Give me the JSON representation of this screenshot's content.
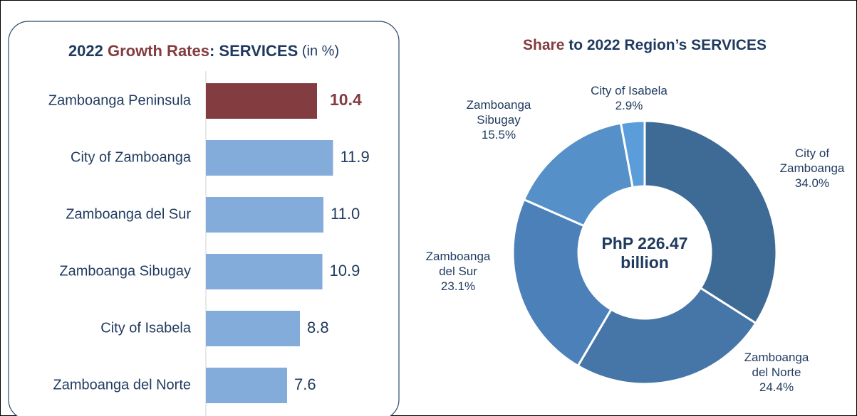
{
  "chart_data": [
    {
      "type": "hbar",
      "title": [
        "2022 ",
        "Growth Rates",
        ": SERVICES",
        " (in %)"
      ],
      "categories": [
        "Zamboanga Peninsula",
        "City of Zamboanga",
        "Zamboanga del Sur",
        "Zamboanga Sibugay",
        "City of Isabela",
        "Zamboanga del Norte"
      ],
      "values": [
        10.4,
        11.9,
        11.0,
        10.9,
        8.8,
        7.6
      ],
      "value_labels": [
        "10.4",
        "11.9",
        "11.0",
        "10.9",
        "8.8",
        "7.6"
      ],
      "colors": [
        "#833c40",
        "#84acdb",
        "#84acdb",
        "#84acdb",
        "#84acdb",
        "#84acdb"
      ],
      "xlim": [
        0,
        20
      ]
    },
    {
      "type": "donut",
      "title": [
        "Share",
        " to 2022 Region’s SERVICES"
      ],
      "center_label": "PhP 226.47 billion",
      "categories": [
        "City of Zamboanga",
        "Zamboanga del Norte",
        "Zamboanga del Sur",
        "Zamboanga Sibugay",
        "City of Isabela"
      ],
      "values": [
        34.0,
        24.4,
        23.1,
        15.5,
        2.9
      ],
      "value_labels": [
        "34.0%",
        "24.4%",
        "23.1%",
        "15.5%",
        "2.9%"
      ],
      "colors": [
        "#3e6a96",
        "#4676a8",
        "#4b80b8",
        "#5590c9",
        "#5b9ddb"
      ]
    }
  ]
}
